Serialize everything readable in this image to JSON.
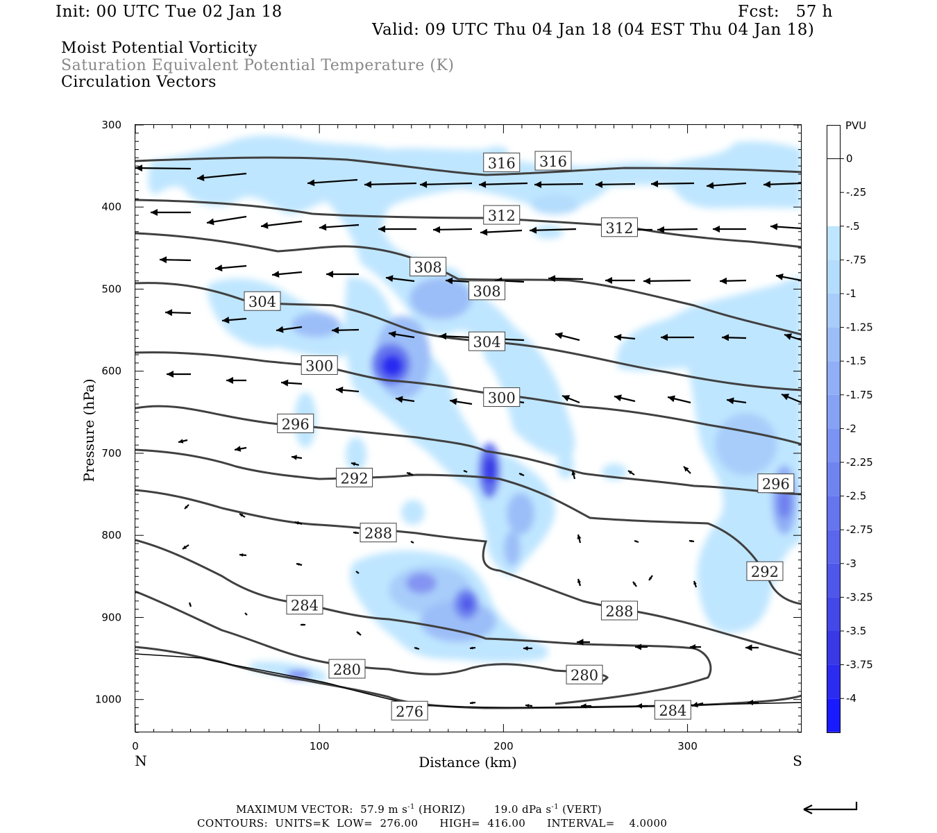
{
  "header": {
    "init": "Init: 00 UTC Tue 02 Jan 18",
    "fcst": "Fcst:   57 h",
    "valid": "Valid: 09 UTC Thu 04 Jan 18 (04 EST Thu 04 Jan 18)",
    "line1": "Moist Potential Vorticity",
    "line2": "Saturation Equivalent Potential Temperature (K)",
    "line3": "Circulation Vectors"
  },
  "footer": {
    "max_vector_prefix": "MAXIMUM VECTOR:  57.9 m s",
    "max_vector_exp1": "-1",
    "max_vector_mid": " (HORIZ)        19.0 dPa s",
    "max_vector_exp2": "-1",
    "max_vector_suffix": " (VERT)",
    "contours": "CONTOURS:  UNITS=K  LOW=  276.00      HIGH=  416.00      INTERVAL=    4.0000"
  },
  "colors": {
    "contour": "#404040",
    "shade_levels": [
      "#ffffff",
      "#ffffff",
      "#bfe6ff",
      "#b4dcfc",
      "#a8cdfa",
      "#9cbef8",
      "#90aff6",
      "#86a2f4",
      "#7b93f2",
      "#7084f0",
      "#6575ee",
      "#5a66ec",
      "#4f57ea",
      "#4448e8",
      "#3939e6",
      "#2c2cf0",
      "#1a1aff"
    ]
  },
  "chart_data": {
    "type": "contour",
    "xlabel": "Distance (km)",
    "ylabel": "Pressure (hPa)",
    "xlim": [
      0,
      362
    ],
    "ylim": [
      1040,
      300
    ],
    "x_ticks": [
      "0",
      "100",
      "200",
      "300"
    ],
    "y_ticks": [
      "300",
      "400",
      "500",
      "600",
      "700",
      "800",
      "900",
      "1000"
    ],
    "x_end_labels": {
      "left": "N",
      "right": "S"
    },
    "colorbar": {
      "title": "PVU",
      "labels": [
        "0",
        "-.25",
        "-.5",
        "-.75",
        "-1",
        "-1.25",
        "-1.5",
        "-1.75",
        "-2",
        "-2.25",
        "-2.5",
        "-2.75",
        "-3",
        "-3.25",
        "-3.5",
        "-3.75",
        "-4"
      ]
    },
    "contour_labels": [
      {
        "text": "316",
        "x": 199,
        "p": 346
      },
      {
        "text": "316",
        "x": 227,
        "p": 344
      },
      {
        "text": "312",
        "x": 199,
        "p": 410
      },
      {
        "text": "312",
        "x": 263,
        "p": 425
      },
      {
        "text": "308",
        "x": 159,
        "p": 473
      },
      {
        "text": "308",
        "x": 191,
        "p": 502
      },
      {
        "text": "304",
        "x": 69,
        "p": 515
      },
      {
        "text": "304",
        "x": 191,
        "p": 564
      },
      {
        "text": "300",
        "x": 100,
        "p": 593
      },
      {
        "text": "300",
        "x": 199,
        "p": 632
      },
      {
        "text": "296",
        "x": 87,
        "p": 664
      },
      {
        "text": "296",
        "x": 348,
        "p": 737
      },
      {
        "text": "292",
        "x": 119,
        "p": 730
      },
      {
        "text": "292",
        "x": 342,
        "p": 844
      },
      {
        "text": "288",
        "x": 132,
        "p": 797
      },
      {
        "text": "288",
        "x": 263,
        "p": 892
      },
      {
        "text": "284",
        "x": 92,
        "p": 885
      },
      {
        "text": "280",
        "x": 115,
        "p": 963
      },
      {
        "text": "280",
        "x": 244,
        "p": 970
      },
      {
        "text": "276",
        "x": 149,
        "p": 1014
      },
      {
        "text": "284",
        "x": 292,
        "p": 1013
      }
    ]
  }
}
